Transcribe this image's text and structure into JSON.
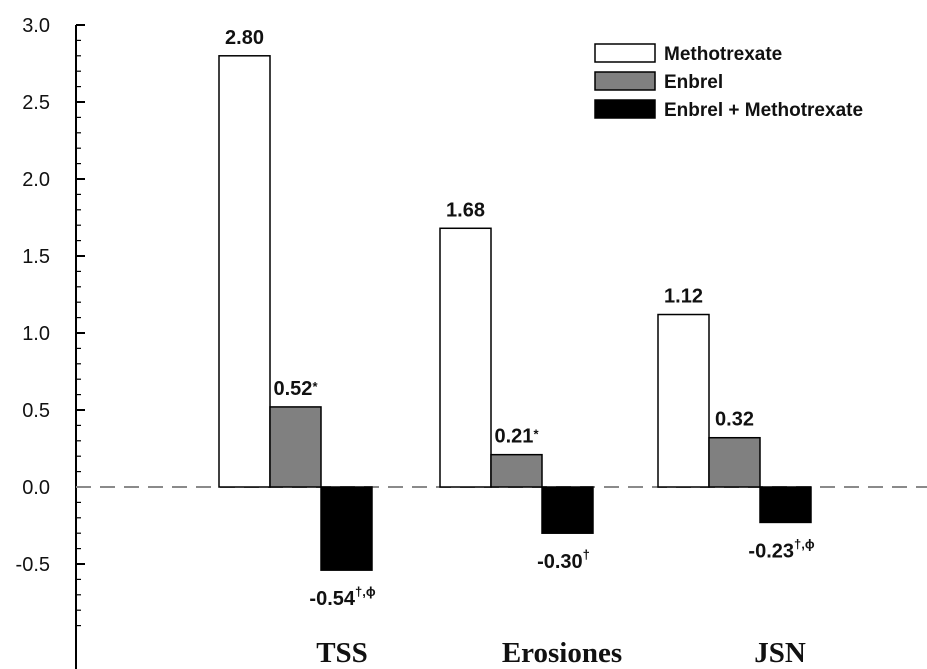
{
  "chart_data": {
    "type": "bar",
    "categories": [
      "TSS",
      "Erosiones",
      "JSN"
    ],
    "series": [
      {
        "name": "Methotrexate",
        "color": "#ffffff",
        "values": [
          2.8,
          1.68,
          1.12
        ],
        "labels": [
          "2.80",
          "1.68",
          "1.12"
        ],
        "label_marks": [
          "",
          "",
          ""
        ]
      },
      {
        "name": "Enbrel",
        "color": "#808080",
        "values": [
          0.52,
          0.21,
          0.32
        ],
        "labels": [
          "0.52",
          "0.21",
          "0.32"
        ],
        "label_marks": [
          "*",
          "*",
          ""
        ]
      },
      {
        "name": "Enbrel + Methotrexate",
        "color": "#000000",
        "values": [
          -0.54,
          -0.3,
          -0.23
        ],
        "labels": [
          "-0.54",
          "-0.30",
          "-0.23"
        ],
        "label_marks": [
          "†,ϕ",
          "†",
          "†,ϕ"
        ]
      }
    ],
    "ylim": [
      -0.9,
      3.0
    ],
    "yticks": [
      "3.0",
      "2.5",
      "2.0",
      "1.5",
      "1.0",
      "0.5",
      "0.0",
      "-0.5"
    ],
    "ytick_values": [
      3.0,
      2.5,
      2.0,
      1.5,
      1.0,
      0.5,
      0.0,
      -0.5
    ],
    "zero_line": "dashed",
    "legend_position": "top-right",
    "title": "",
    "xlabel": "",
    "ylabel": ""
  }
}
